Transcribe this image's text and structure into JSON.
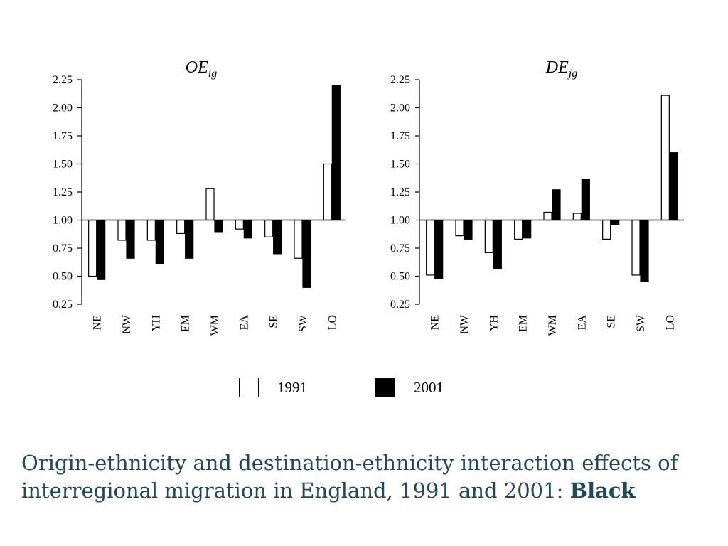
{
  "chart_data": [
    {
      "type": "bar",
      "title": "OE",
      "title_sub": "ig",
      "categories": [
        "NE",
        "NW",
        "YH",
        "EM",
        "WM",
        "EA",
        "SE",
        "SW",
        "LO"
      ],
      "baseline": 1.0,
      "ylim": [
        0.25,
        2.25
      ],
      "yticks": [
        "2.25",
        "2.00",
        "1.75",
        "1.50",
        "1.25",
        "1.00",
        "0.75",
        "0.50",
        "0.25"
      ],
      "series": [
        {
          "name": "1991",
          "values": [
            0.5,
            0.82,
            0.82,
            0.88,
            1.28,
            0.92,
            0.85,
            0.66,
            1.5
          ]
        },
        {
          "name": "2001",
          "values": [
            0.47,
            0.66,
            0.61,
            0.66,
            0.89,
            0.84,
            0.7,
            0.4,
            2.2
          ]
        }
      ]
    },
    {
      "type": "bar",
      "title": "DE",
      "title_sub": "jg",
      "categories": [
        "NE",
        "NW",
        "YH",
        "EM",
        "WM",
        "EA",
        "SE",
        "SW",
        "LO"
      ],
      "baseline": 1.0,
      "ylim": [
        0.25,
        2.25
      ],
      "yticks": [
        "2.25",
        "2.00",
        "1.75",
        "1.50",
        "1.25",
        "1.00",
        "0.75",
        "0.50",
        "0.25"
      ],
      "series": [
        {
          "name": "1991",
          "values": [
            0.51,
            0.86,
            0.71,
            0.83,
            1.07,
            1.06,
            0.83,
            0.51,
            2.11
          ]
        },
        {
          "name": "2001",
          "values": [
            0.48,
            0.83,
            0.57,
            0.84,
            1.27,
            1.36,
            0.96,
            0.45,
            1.6
          ]
        }
      ]
    }
  ],
  "legend": [
    {
      "label": "1991",
      "color": "#ffffff"
    },
    {
      "label": "2001",
      "color": "#000000"
    }
  ],
  "caption": {
    "text": "Origin-ethnicity and destination-ethnicity interaction effects of interregional migration in England, 1991 and 2001: ",
    "bold": "Black",
    "color": "#1d4a5c"
  }
}
